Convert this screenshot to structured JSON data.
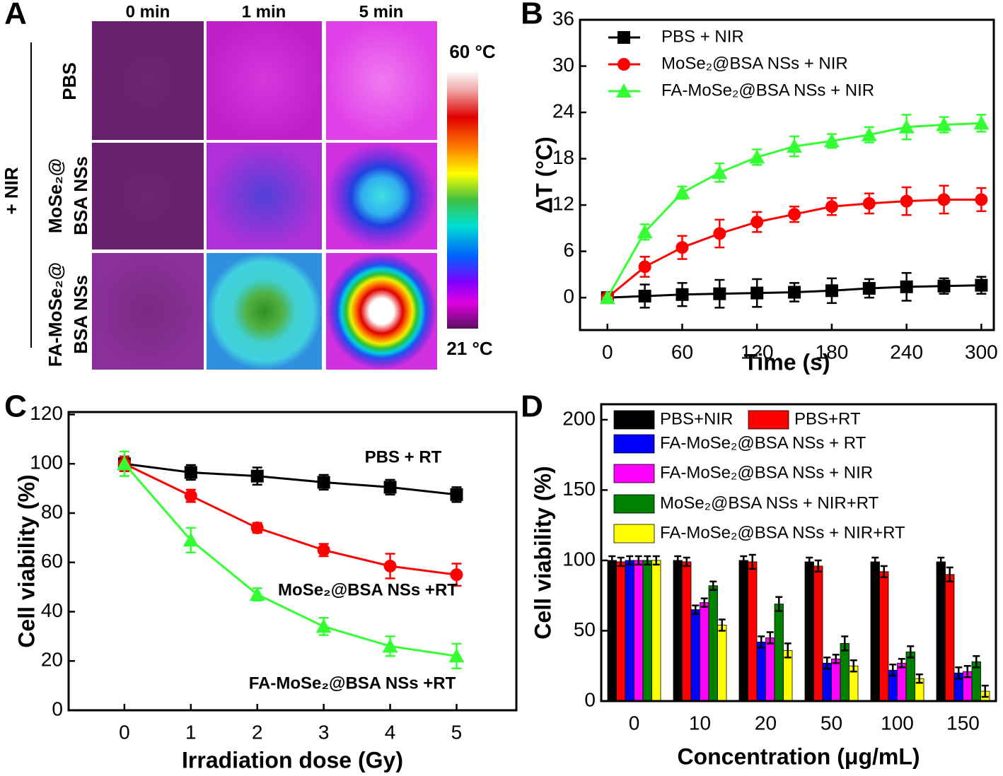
{
  "panel_a": {
    "label": "A",
    "columns": [
      "0 min",
      "1 min",
      "5 min"
    ],
    "rows": [
      [
        "PBS"
      ],
      [
        "MoSe₂@",
        "BSA NSs"
      ],
      [
        "FA-MoSe₂@",
        "BSA NSs"
      ]
    ],
    "group_label": "+ NIR",
    "colorbar": {
      "max_label": "60 °C",
      "min_label": "21 °C"
    }
  },
  "chart_data": [
    {
      "label": "B",
      "type": "line",
      "x_label": "Time (s)",
      "y_label": "ΔT (°C)",
      "x": [
        0,
        30,
        60,
        90,
        120,
        150,
        180,
        210,
        240,
        270,
        300
      ],
      "xlim": [
        -22,
        310
      ],
      "ylim": [
        -4.2,
        36
      ],
      "xticks": [
        0,
        60,
        120,
        180,
        240,
        300
      ],
      "yticks": [
        0,
        6,
        12,
        18,
        24,
        30,
        36
      ],
      "legend": "upper left",
      "series": [
        {
          "name": "PBS + NIR",
          "color": "#000000",
          "marker": "square",
          "values": [
            0,
            0.2,
            0.4,
            0.5,
            0.6,
            0.7,
            0.9,
            1.2,
            1.4,
            1.5,
            1.6
          ],
          "errors": [
            0,
            1.5,
            1.5,
            1.8,
            1.8,
            1.2,
            1.6,
            1.2,
            1.8,
            1,
            1.1
          ]
        },
        {
          "name": "MoSe₂@BSA NSs + NIR",
          "color": "#ff0000",
          "marker": "circle",
          "values": [
            0,
            4,
            6.5,
            8.3,
            9.8,
            10.8,
            11.8,
            12.2,
            12.5,
            12.7,
            12.7
          ],
          "errors": [
            0,
            1.3,
            1.5,
            1.8,
            1.3,
            1,
            1.1,
            1.3,
            1.8,
            1.8,
            1.5
          ]
        },
        {
          "name": "FA-MoSe₂@BSA NSs + NIR",
          "color": "#33ff33",
          "marker": "triangle",
          "values": [
            0,
            8.5,
            13.6,
            16.2,
            18.2,
            19.6,
            20.3,
            21.1,
            22.1,
            22.4,
            22.6
          ],
          "errors": [
            0,
            1,
            0.8,
            1.2,
            1,
            1.3,
            0.9,
            1,
            1.6,
            1,
            1.1
          ]
        }
      ]
    },
    {
      "label": "C",
      "type": "line",
      "x_label": "Irradiation dose (Gy)",
      "y_label": "Cell viability (%)",
      "x": [
        0,
        1,
        2,
        3,
        4,
        5
      ],
      "xlim": [
        -0.84,
        5.9
      ],
      "ylim": [
        0,
        121
      ],
      "xticks": [
        0,
        1,
        2,
        3,
        4,
        5
      ],
      "yticks": [
        0,
        20,
        40,
        60,
        80,
        100,
        120
      ],
      "legend": "inline",
      "series": [
        {
          "name": "PBS + RT",
          "color": "#000000",
          "marker": "square",
          "values": [
            100,
            96.5,
            95,
            92.5,
            90.5,
            87.5
          ],
          "errors": [
            3,
            3,
            3.5,
            3,
            3,
            3
          ]
        },
        {
          "name": "MoSe₂@BSA NSs +RT",
          "color": "#ff0000",
          "marker": "circle",
          "values": [
            100,
            87,
            74,
            65,
            58.5,
            55
          ],
          "errors": [
            3,
            2.5,
            2,
            2.5,
            5,
            4.5
          ]
        },
        {
          "name": "FA-MoSe₂@BSA NSs +RT",
          "color": "#33ff33",
          "marker": "triangle",
          "values": [
            100,
            69,
            47,
            34,
            26,
            22
          ],
          "errors": [
            5,
            5,
            2.5,
            3.5,
            4,
            5
          ]
        }
      ]
    },
    {
      "label": "D",
      "type": "bar",
      "x_label": "Concentration (μg/mL)",
      "y_label": "Cell viability (%)",
      "categories": [
        "0",
        "10",
        "20",
        "50",
        "100",
        "150"
      ],
      "ylim": [
        0,
        211
      ],
      "yticks": [
        0,
        50,
        100,
        150,
        200
      ],
      "legend": "upper left",
      "series": [
        {
          "name": "PBS+NIR",
          "color": "#000000",
          "values": [
            100,
            100,
            100,
            99,
            99,
            99
          ],
          "errors": [
            3,
            3,
            3,
            3,
            3,
            3
          ]
        },
        {
          "name": "PBS+RT",
          "color": "#ff0000",
          "values": [
            99,
            99,
            99,
            96,
            92,
            90
          ],
          "errors": [
            3,
            3,
            5,
            4,
            4,
            5
          ]
        },
        {
          "name": "FA-MoSe₂@BSA NSs + RT",
          "color": "#0000ff",
          "values": [
            100,
            65,
            42,
            27,
            22,
            20
          ],
          "errors": [
            3,
            3,
            4,
            4,
            4,
            4
          ]
        },
        {
          "name": "FA-MoSe₂@BSA NSs + NIR",
          "color": "#ff00ff",
          "values": [
            100,
            70,
            45,
            30,
            27,
            21
          ],
          "errors": [
            3,
            3,
            4,
            3,
            3,
            4
          ]
        },
        {
          "name": "MoSe₂@BSA NSs + NIR+RT",
          "color": "#008000",
          "values": [
            100,
            82,
            69,
            41,
            35,
            28
          ],
          "errors": [
            3,
            3,
            5,
            5,
            4,
            4
          ]
        },
        {
          "name": "FA-MoSe₂@BSA NSs + NIR+RT",
          "color": "#ffff00",
          "values": [
            100,
            54,
            36,
            25,
            16,
            7
          ],
          "errors": [
            3,
            4,
            5,
            4,
            3,
            4
          ]
        }
      ]
    }
  ]
}
